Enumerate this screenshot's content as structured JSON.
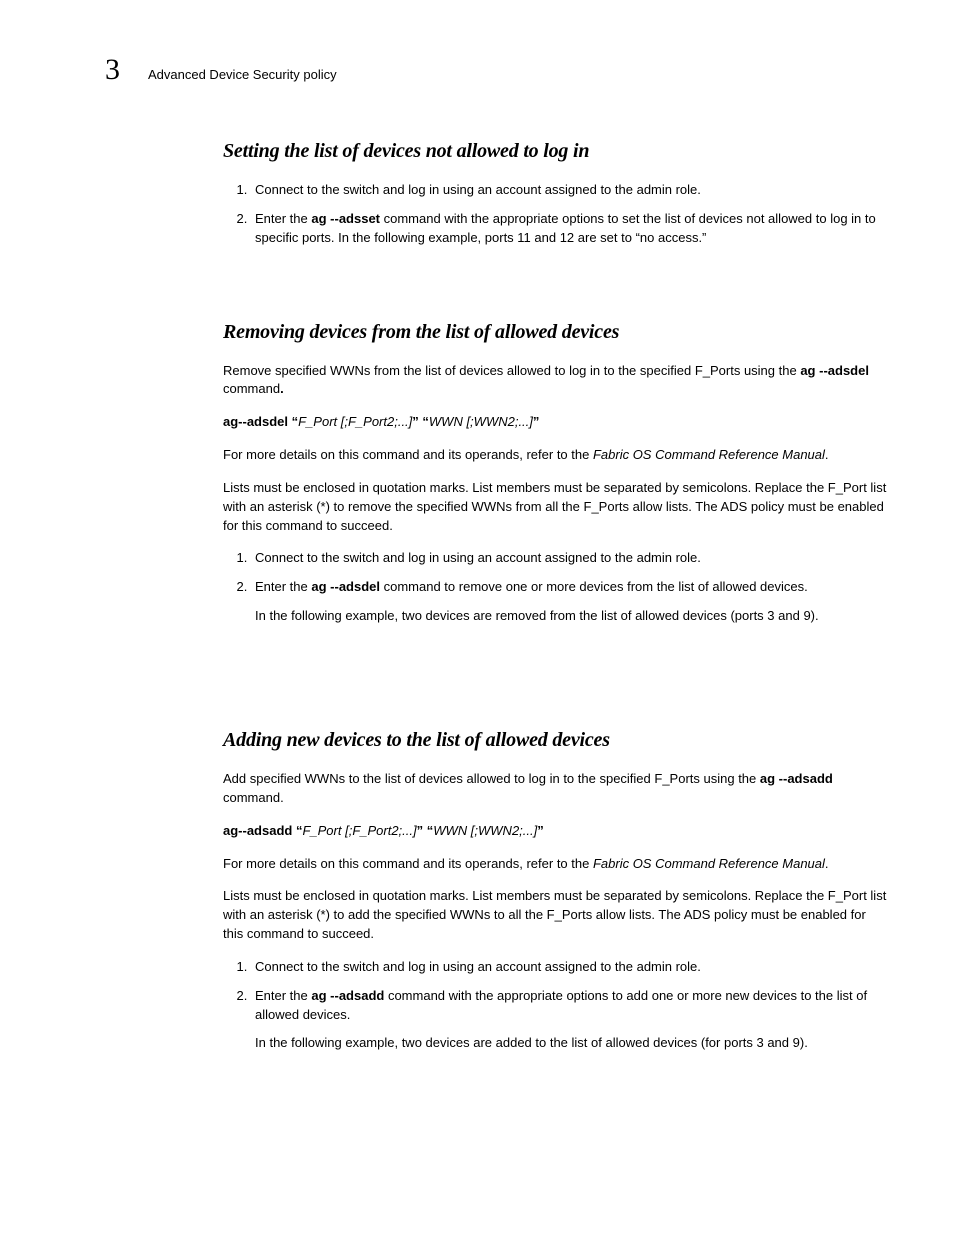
{
  "header": {
    "chapter_num": "3",
    "title": "Advanced Device Security policy"
  },
  "sec1": {
    "title": "Setting the list of devices not allowed to log in",
    "step1": "Connect to the switch and log in using an account assigned to the admin role.",
    "step2_a": "Enter the ",
    "step2_cmd": "ag ‑‑adsset",
    "step2_b": " command with the appropriate options to set the list of devices not allowed to log in to specific ports. In the following example, ports 11 and 12 are set to “no access.”"
  },
  "sec2": {
    "title": "Removing devices from the list of allowed devices",
    "intro_a": "Remove specified WWNs from the list of devices allowed to log in to the specified F_Ports using the ",
    "intro_cmd": "ag ‑‑adsdel",
    "intro_b": " command",
    "intro_c": ".",
    "syn_cmd": "ag--adsdel “",
    "syn_arg1": "F_Port [;F_Port2;...]",
    "syn_mid": "” “",
    "syn_arg2": "WWN [;WWN2;...]",
    "syn_end": "”",
    "ref_a": "For more details on this command and its operands, refer to the ",
    "ref_ital": "Fabric OS Command Reference Manual",
    "ref_b": ".",
    "lists": "Lists must be enclosed in quotation marks. List members must be separated by semicolons. Replace the F_Port list with an asterisk (*) to remove the specified WWNs from all the F_Ports allow lists. The ADS policy must be enabled for this command to succeed.",
    "step1": "Connect to the switch and log in using an account assigned to the admin role.",
    "step2_a": "Enter the ",
    "step2_cmd": "ag ‑‑adsdel",
    "step2_b": " command to remove one or more devices from the list of allowed devices.",
    "step2_follow": "In the following example, two devices are removed from the list of allowed devices (ports 3 and 9)."
  },
  "sec3": {
    "title": "Adding new devices to the list of allowed devices",
    "intro_a": "Add specified WWNs to the list of devices allowed to log in to the specified F_Ports using the ",
    "intro_cmd": "ag --adsadd",
    "intro_b": " command.",
    "syn_cmd": "ag--adsadd “",
    "syn_arg1": "F_Port [;F_Port2;...]",
    "syn_mid": "” “",
    "syn_arg2": "WWN [;WWN2;...]",
    "syn_end": "”",
    "ref_a": "For more details on this command and its operands, refer to the ",
    "ref_ital": "Fabric OS Command Reference Manual",
    "ref_b": ".",
    "lists": "Lists must be enclosed in quotation marks. List members must be separated by semicolons. Replace the F_Port list with an asterisk (*) to add the specified WWNs to all the F_Ports allow lists. The ADS policy must be enabled for this command to succeed.",
    "step1": "Connect to the switch and log in using an account assigned to the admin role.",
    "step2_a": "Enter the ",
    "step2_cmd": "ag --adsadd",
    "step2_b": " command with the appropriate options to add one or more new devices to the list of allowed devices.",
    "step2_follow": "In the following example, two devices are added to the list of allowed devices (for ports 3 and 9)."
  }
}
